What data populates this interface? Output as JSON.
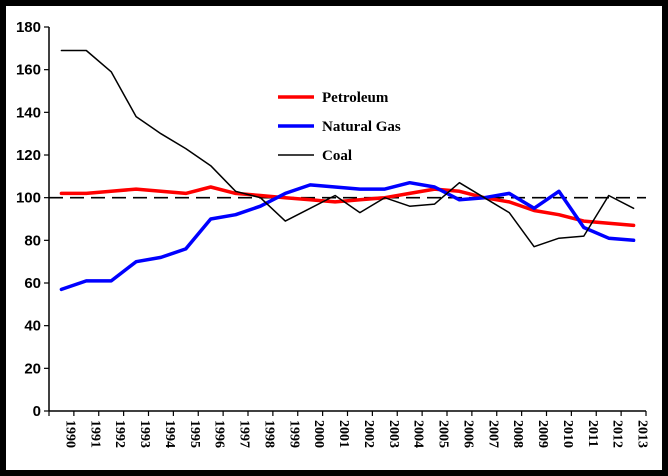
{
  "chart_data": {
    "type": "line",
    "title": "",
    "xlabel": "",
    "ylabel": "",
    "ylim": [
      0,
      180
    ],
    "yticks": [
      0,
      20,
      40,
      60,
      80,
      100,
      120,
      140,
      160,
      180
    ],
    "x": [
      "1990",
      "1991",
      "1992",
      "1993",
      "1994",
      "1995",
      "1996",
      "1997",
      "1998",
      "1999",
      "2000",
      "2001",
      "2002",
      "2003",
      "2004",
      "2005",
      "2006",
      "2007",
      "2008",
      "2009",
      "2010",
      "2011",
      "2012",
      "2013"
    ],
    "reference_line": {
      "value": 100,
      "style": "dashed",
      "color": "#000000"
    },
    "legend_position": "upper-center",
    "series": [
      {
        "name": "Petroleum",
        "color": "#ff0000",
        "width": 3.5,
        "values": [
          102,
          102,
          103,
          104,
          103,
          102,
          105,
          102,
          101,
          100,
          99,
          98,
          99,
          100,
          102,
          104,
          103,
          100,
          98,
          94,
          92,
          89,
          88,
          87
        ]
      },
      {
        "name": "Natural Gas",
        "color": "#0000ff",
        "width": 3.5,
        "values": [
          57,
          61,
          61,
          70,
          72,
          76,
          90,
          92,
          96,
          102,
          106,
          105,
          104,
          104,
          107,
          105,
          99,
          100,
          102,
          95,
          103,
          86,
          81,
          80
        ]
      },
      {
        "name": "Coal",
        "color": "#000000",
        "width": 1.5,
        "values": [
          169,
          169,
          159,
          138,
          130,
          123,
          115,
          103,
          100,
          89,
          95,
          101,
          93,
          100,
          96,
          97,
          107,
          100,
          93,
          77,
          81,
          82,
          101,
          95
        ]
      }
    ]
  }
}
